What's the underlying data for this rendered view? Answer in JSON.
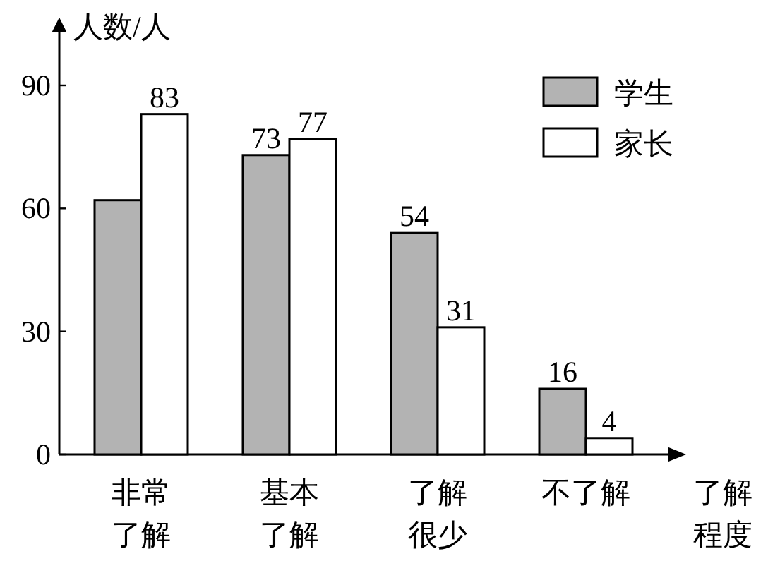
{
  "chart_data": {
    "type": "bar",
    "ylabel": "人数/人",
    "xlabel": "了解程度",
    "categories": [
      "非常了解",
      "基本了解",
      "了解很少",
      "不了解"
    ],
    "series": [
      {
        "name": "学生",
        "color": "#b3b3b3",
        "values": [
          62,
          73,
          54,
          16
        ],
        "value_labels": [
          null,
          "73",
          "54",
          "16"
        ]
      },
      {
        "name": "家长",
        "color": "#ffffff",
        "values": [
          83,
          77,
          31,
          4
        ],
        "value_labels": [
          "83",
          "77",
          "31",
          "4"
        ]
      }
    ],
    "ylim": [
      0,
      106
    ],
    "yticks": [
      0,
      30,
      60,
      90
    ],
    "legend": "top right"
  }
}
